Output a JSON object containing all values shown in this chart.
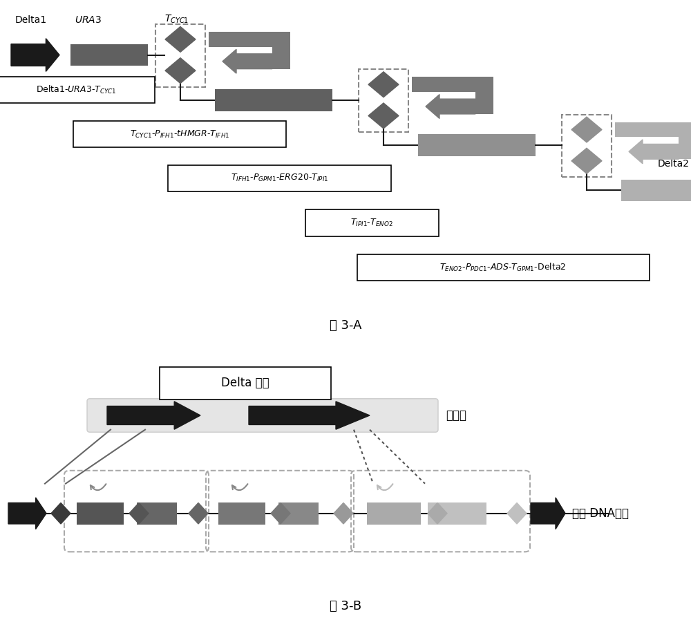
{
  "fig_width": 10.0,
  "fig_height": 8.97,
  "bg_color": "#ffffff",
  "dk": "#1a1a1a",
  "mg": "#606060",
  "mg2": "#787878",
  "lg": "#909090",
  "llg": "#b0b0b0",
  "vlg": "#cccccc",
  "label_3A": "图 3-A",
  "label_3B": "图 3-B",
  "box1_text": "Delta1-$\\mathit{URA3}$-T$_{CYC1}$",
  "box2_text": "T$_{CYC1}$-P$_{IFH1}$-$\\mathit{tHMGR}$-T$_{IFH1}$",
  "box3_text": "T$_{IFH1}$-P$_{GPM1}$-$\\mathit{ERG20}$-T$_{IPI1}$",
  "box4_text": "T$_{IPI1}$-T$_{ENO2}$",
  "box5_text": "T$_{ENO2}$-P$_{PDC1}$-$\\mathit{ADS}$-T$_{GPM1}$-Delta2",
  "delta1_label": "Delta1",
  "ura3_label": "URA3",
  "tcyc1_label": "T$_{CYC1}$",
  "delta2_label": "Delta2",
  "delta_site_label": "Delta 位点",
  "genome_label": "基因组",
  "recomb_label": "重组 DNA分子"
}
